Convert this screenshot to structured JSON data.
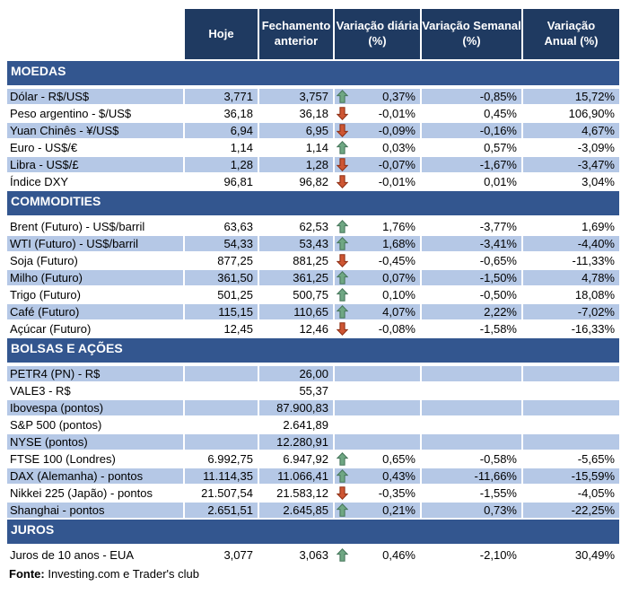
{
  "colors": {
    "header_bg": "#1F3A61",
    "section_bg": "#33568F",
    "stripe_bg": "#B5C8E6",
    "header_text": "#FFFFFF",
    "body_text": "#000000",
    "arrow_up_fill": "#6FA783",
    "arrow_up_stroke": "#47775C",
    "arrow_down_fill": "#CE5633",
    "arrow_down_stroke": "#8F3016"
  },
  "header": {
    "col_hoje": "Hoje",
    "col_fechamento": "Fechamento\nanterior",
    "col_diaria": "Variação diária\n(%)",
    "col_semanal": "Variação Semanal\n(%)",
    "col_anual": "Variação\nAnual (%)"
  },
  "sections": [
    {
      "title": "MOEDAS",
      "first_row_striped": true,
      "rows": [
        {
          "label": "Dólar - R$/US$",
          "hoje": "3,771",
          "fechamento": "3,757",
          "arrow": "up",
          "diaria": "0,37%",
          "semanal": "-0,85%",
          "anual": "15,72%"
        },
        {
          "label": "Peso argentino - $/US$",
          "hoje": "36,18",
          "fechamento": "36,18",
          "arrow": "down",
          "diaria": "-0,01%",
          "semanal": "0,45%",
          "anual": "106,90%"
        },
        {
          "label": "Yuan Chinês - ¥/US$",
          "hoje": "6,94",
          "fechamento": "6,95",
          "arrow": "down",
          "diaria": "-0,09%",
          "semanal": "-0,16%",
          "anual": "4,67%"
        },
        {
          "label": "Euro - US$/€",
          "hoje": "1,14",
          "fechamento": "1,14",
          "arrow": "up",
          "diaria": "0,03%",
          "semanal": "0,57%",
          "anual": "-3,09%"
        },
        {
          "label": "Libra - US$/£",
          "hoje": "1,28",
          "fechamento": "1,28",
          "arrow": "down",
          "diaria": "-0,07%",
          "semanal": "-1,67%",
          "anual": "-3,47%"
        },
        {
          "label": "Índice DXY",
          "hoje": "96,81",
          "fechamento": "96,82",
          "arrow": "down",
          "diaria": "-0,01%",
          "semanal": "0,01%",
          "anual": "3,04%"
        }
      ]
    },
    {
      "title": "COMMODITIES",
      "first_row_striped": false,
      "rows": [
        {
          "label": "Brent (Futuro) - US$/barril",
          "hoje": "63,63",
          "fechamento": "62,53",
          "arrow": "up",
          "diaria": "1,76%",
          "semanal": "-3,77%",
          "anual": "1,69%"
        },
        {
          "label": "WTI (Futuro) - US$/barril",
          "hoje": "54,33",
          "fechamento": "53,43",
          "arrow": "up",
          "diaria": "1,68%",
          "semanal": "-3,41%",
          "anual": "-4,40%"
        },
        {
          "label": "Soja (Futuro)",
          "hoje": "877,25",
          "fechamento": "881,25",
          "arrow": "down",
          "diaria": "-0,45%",
          "semanal": "-0,65%",
          "anual": "-11,33%"
        },
        {
          "label": "Milho (Futuro)",
          "hoje": "361,50",
          "fechamento": "361,25",
          "arrow": "up",
          "diaria": "0,07%",
          "semanal": "-1,50%",
          "anual": "4,78%"
        },
        {
          "label": "Trigo (Futuro)",
          "hoje": "501,25",
          "fechamento": "500,75",
          "arrow": "up",
          "diaria": "0,10%",
          "semanal": "-0,50%",
          "anual": "18,08%"
        },
        {
          "label": "Café (Futuro)",
          "hoje": "115,15",
          "fechamento": "110,65",
          "arrow": "up",
          "diaria": "4,07%",
          "semanal": "2,22%",
          "anual": "-7,02%"
        },
        {
          "label": "Açúcar (Futuro)",
          "hoje": "12,45",
          "fechamento": "12,46",
          "arrow": "down",
          "diaria": "-0,08%",
          "semanal": "-1,58%",
          "anual": "-16,33%"
        }
      ]
    },
    {
      "title": "BOLSAS E AÇÕES",
      "first_row_striped": true,
      "rows": [
        {
          "label": "PETR4 (PN) - R$",
          "hoje": "",
          "fechamento": "26,00",
          "arrow": "",
          "diaria": "",
          "semanal": "",
          "anual": ""
        },
        {
          "label": "VALE3 - R$",
          "hoje": "",
          "fechamento": "55,37",
          "arrow": "",
          "diaria": "",
          "semanal": "",
          "anual": ""
        },
        {
          "label": "Ibovespa (pontos)",
          "hoje": "",
          "fechamento": "87.900,83",
          "arrow": "",
          "diaria": "",
          "semanal": "",
          "anual": ""
        },
        {
          "label": "S&P 500 (pontos)",
          "hoje": "",
          "fechamento": "2.641,89",
          "arrow": "",
          "diaria": "",
          "semanal": "",
          "anual": ""
        },
        {
          "label": "NYSE (pontos)",
          "hoje": "",
          "fechamento": "12.280,91",
          "arrow": "",
          "diaria": "",
          "semanal": "",
          "anual": ""
        },
        {
          "label": "FTSE 100 (Londres)",
          "hoje": "6.992,75",
          "fechamento": "6.947,92",
          "arrow": "up",
          "diaria": "0,65%",
          "semanal": "-0,58%",
          "anual": "-5,65%"
        },
        {
          "label": "DAX (Alemanha) - pontos",
          "hoje": "11.114,35",
          "fechamento": "11.066,41",
          "arrow": "up",
          "diaria": "0,43%",
          "semanal": "-11,66%",
          "anual": "-15,59%"
        },
        {
          "label": "Nikkei 225 (Japão) - pontos",
          "hoje": "21.507,54",
          "fechamento": "21.583,12",
          "arrow": "down",
          "diaria": "-0,35%",
          "semanal": "-1,55%",
          "anual": "-4,05%"
        },
        {
          "label": "Shanghai - pontos",
          "hoje": "2.651,51",
          "fechamento": "2.645,85",
          "arrow": "up",
          "diaria": "0,21%",
          "semanal": "0,73%",
          "anual": "-22,25%"
        }
      ]
    },
    {
      "title": "JUROS",
      "first_row_striped": false,
      "rows": [
        {
          "label": "Juros de 10 anos - EUA",
          "hoje": "3,077",
          "fechamento": "3,063",
          "arrow": "up",
          "diaria": "0,46%",
          "semanal": "-2,10%",
          "anual": "30,49%"
        }
      ]
    }
  ],
  "footer": {
    "label": "Fonte:",
    "text": " Investing.com e Trader's club"
  }
}
